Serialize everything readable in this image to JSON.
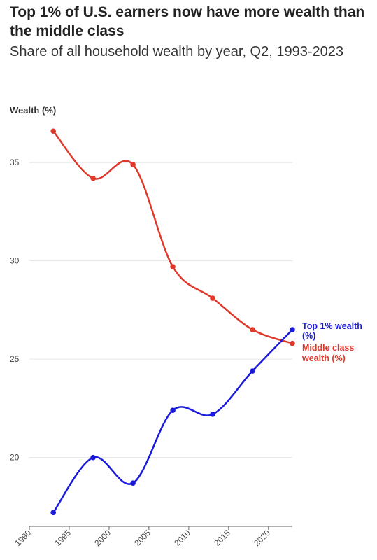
{
  "title": "Top 1% of U.S. earners now have more wealth than the middle class",
  "subtitle": "Share of all household wealth by year, Q2, 1993-2023",
  "colors": {
    "top": "#1a1adb",
    "middle": "#e0382b",
    "grid": "#e6e6e6"
  },
  "chart_data": {
    "type": "line",
    "ylabel": "Wealth (%)",
    "xlabel": "",
    "x": [
      1993,
      1998,
      2003,
      2008,
      2013,
      2018,
      2023
    ],
    "series": [
      {
        "name": "Middle class wealth (%)",
        "label_lines": [
          "Middle class",
          "wealth (%)"
        ],
        "color": "#e0382b",
        "values": [
          36.6,
          34.2,
          34.9,
          29.7,
          28.1,
          26.5,
          25.8
        ]
      },
      {
        "name": "Top 1% wealth (%)",
        "label_lines": [
          "Top 1% wealth",
          "(%)"
        ],
        "color": "#1a1adb",
        "values": [
          17.2,
          20.0,
          18.7,
          22.4,
          22.2,
          24.4,
          26.5
        ]
      }
    ],
    "xlim": [
      1990,
      2023
    ],
    "ylim": [
      16.5,
      37
    ],
    "xticks": [
      1990,
      1995,
      2000,
      2005,
      2010,
      2015,
      2020
    ],
    "yticks": [
      20,
      25,
      30,
      35
    ],
    "grid": "horizontal",
    "legend": "direct labels at line ends"
  }
}
